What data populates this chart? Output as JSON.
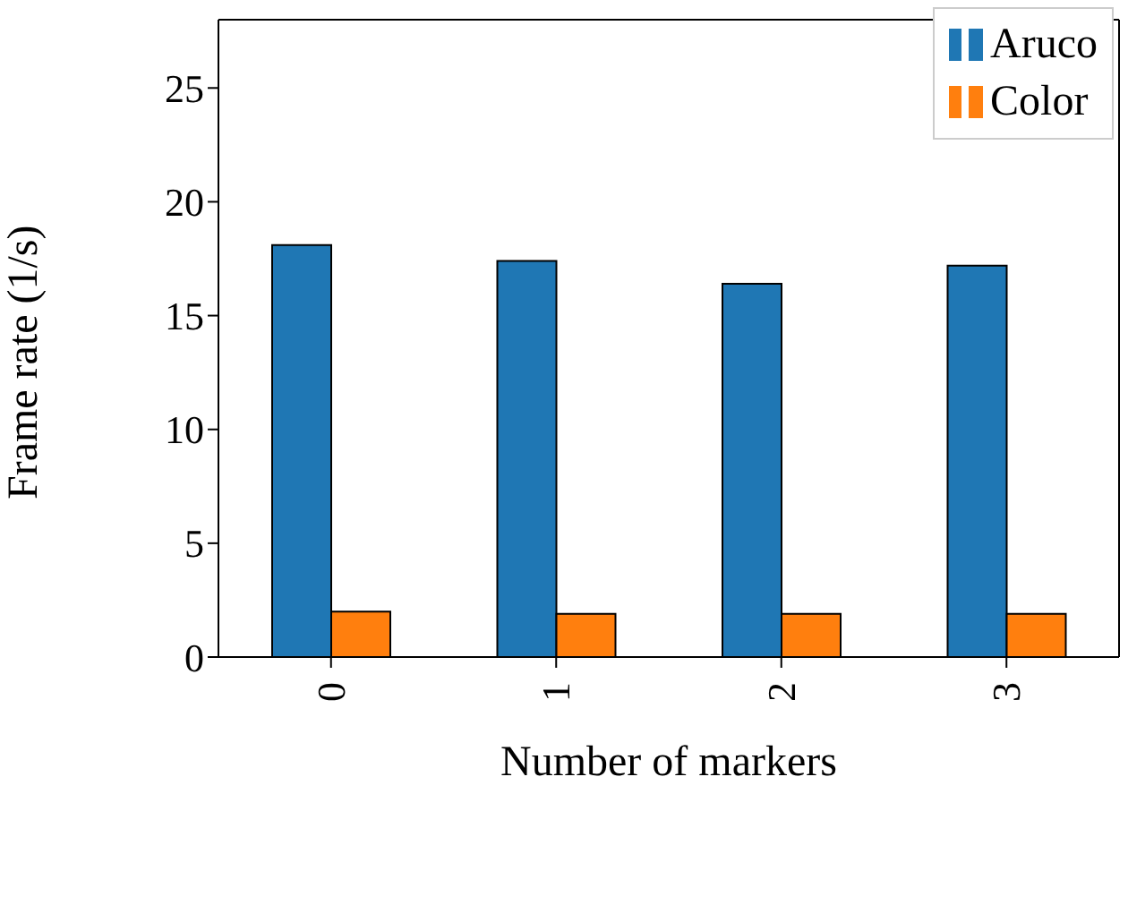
{
  "chart_data": {
    "type": "bar",
    "xlabel": "Number of markers",
    "ylabel": "Frame rate (1/s)",
    "categories": [
      "0",
      "1",
      "2",
      "3"
    ],
    "series": [
      {
        "name": "Aruco",
        "color": "#1f77b4",
        "values": [
          18.1,
          17.4,
          16.4,
          17.2
        ]
      },
      {
        "name": "Color",
        "color": "#ff7f0e",
        "values": [
          2.0,
          1.9,
          1.9,
          1.9
        ]
      }
    ],
    "ylim": [
      0,
      28
    ],
    "yticks": [
      0,
      5,
      10,
      15,
      20,
      25
    ],
    "grid": false,
    "legend": "top right"
  }
}
